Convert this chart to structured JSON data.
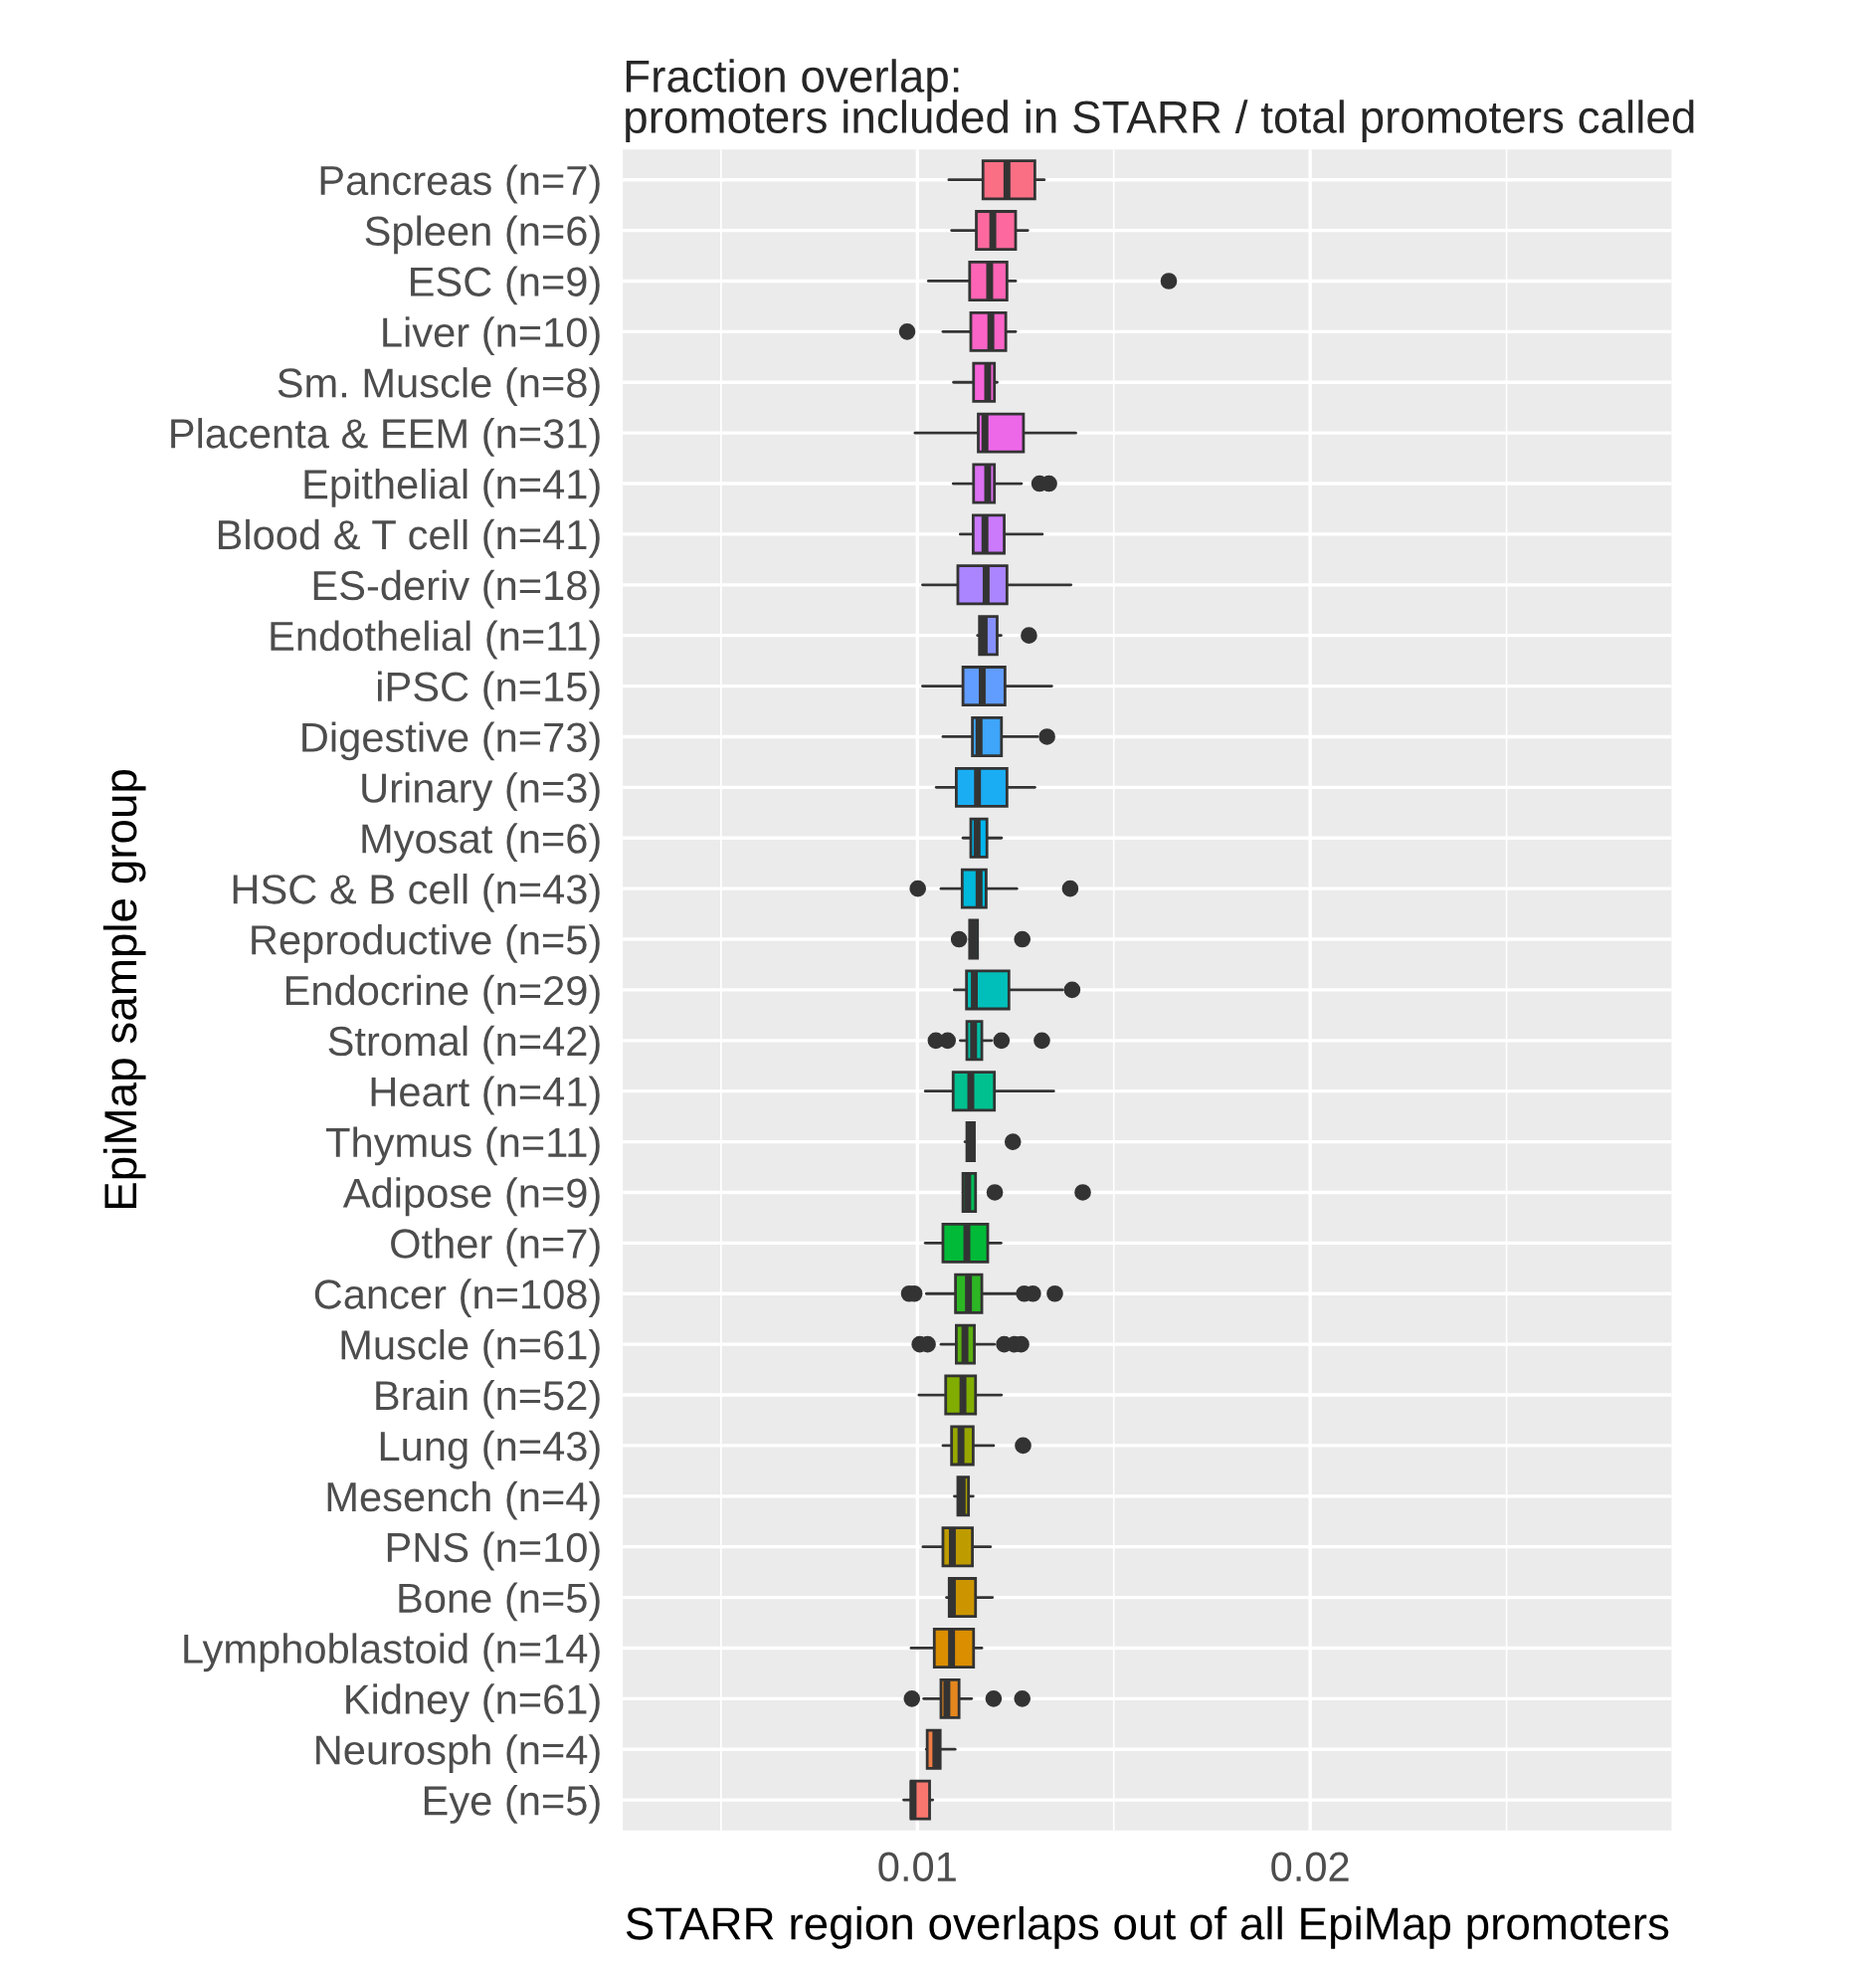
{
  "chart_data": {
    "type": "box",
    "orientation": "horizontal",
    "title": "Fraction overlap:\npromoters included in STARR / total promoters called",
    "xlabel": "STARR region overlaps out of all EpiMap promoters",
    "ylabel": "EpiMap sample group",
    "categories": [
      "Pancreas (n=7)",
      "Spleen (n=6)",
      "ESC (n=9)",
      "Liver (n=10)",
      "Sm. Muscle (n=8)",
      "Placenta & EEM (n=31)",
      "Epithelial (n=41)",
      "Blood & T cell (n=41)",
      "ES-deriv (n=18)",
      "Endothelial (n=11)",
      "iPSC (n=15)",
      "Digestive (n=73)",
      "Urinary (n=3)",
      "Myosat (n=6)",
      "HSC & B cell (n=43)",
      "Reproductive (n=5)",
      "Endocrine (n=29)",
      "Stromal (n=42)",
      "Heart (n=41)",
      "Thymus (n=11)",
      "Adipose (n=9)",
      "Other (n=7)",
      "Cancer (n=108)",
      "Muscle (n=61)",
      "Brain (n=52)",
      "Lung (n=43)",
      "Mesench (n=4)",
      "PNS (n=10)",
      "Bone (n=5)",
      "Lymphoblastoid (n=14)",
      "Kidney (n=61)",
      "Neurosph (n=4)",
      "Eye (n=5)"
    ],
    "colors": [
      "#FB6F85",
      "#FD699E",
      "#FE64B5",
      "#FB64C7",
      "#F764DA",
      "#ED68E8",
      "#DC71F2",
      "#CB7AFC",
      "#AB85FF",
      "#8690FF",
      "#619CFF",
      "#3EA5FA",
      "#1BADF4",
      "#00B5EC",
      "#00B9DC",
      "#00BDCC",
      "#00BFBA",
      "#00C0A5",
      "#00C090",
      "#00BE74",
      "#00BC56",
      "#00BA38",
      "#2DB624",
      "#5AB10F",
      "#81AD00",
      "#97A700",
      "#ACA200",
      "#BE9C00",
      "#CC9500",
      "#DA8E00",
      "#E5861E",
      "#EF7E45",
      "#F8766D"
    ],
    "boxes": [
      {
        "low": 0.0108,
        "q1": 0.01167,
        "median": 0.01228,
        "q3": 0.01299,
        "high": 0.01323
      },
      {
        "low": 0.01087,
        "q1": 0.0115,
        "median": 0.01192,
        "q3": 0.0125,
        "high": 0.01281
      },
      {
        "low": 0.01028,
        "q1": 0.01133,
        "median": 0.01184,
        "q3": 0.01228,
        "high": 0.0125,
        "outliers": [
          0.0164
        ]
      },
      {
        "low": 0.01065,
        "q1": 0.01136,
        "median": 0.01187,
        "q3": 0.01225,
        "high": 0.0125,
        "outliers": [
          0.00974
        ]
      },
      {
        "low": 0.01092,
        "q1": 0.01143,
        "median": 0.01179,
        "q3": 0.01196,
        "high": 0.01203
      },
      {
        "low": 0.00994,
        "q1": 0.01155,
        "median": 0.01172,
        "q3": 0.0127,
        "high": 0.01403
      },
      {
        "low": 0.01091,
        "q1": 0.01143,
        "median": 0.01179,
        "q3": 0.01196,
        "high": 0.01265,
        "outliers": [
          0.01311,
          0.01335
        ]
      },
      {
        "low": 0.01109,
        "q1": 0.01142,
        "median": 0.01172,
        "q3": 0.01221,
        "high": 0.01318
      },
      {
        "low": 0.01013,
        "q1": 0.01103,
        "median": 0.01175,
        "q3": 0.01228,
        "high": 0.01391
      },
      {
        "low": 0.01153,
        "q1": 0.01158,
        "median": 0.0117,
        "q3": 0.01203,
        "high": 0.01213,
        "outliers": [
          0.01284
        ]
      },
      {
        "low": 0.01013,
        "q1": 0.01116,
        "median": 0.01165,
        "q3": 0.01223,
        "high": 0.01342
      },
      {
        "low": 0.01065,
        "q1": 0.0114,
        "median": 0.01157,
        "q3": 0.01214,
        "high": 0.01306,
        "outliers": [
          0.0133
        ]
      },
      {
        "low": 0.01048,
        "q1": 0.01099,
        "median": 0.01153,
        "q3": 0.01228,
        "high": 0.01299
      },
      {
        "low": 0.01116,
        "q1": 0.01136,
        "median": 0.01152,
        "q3": 0.01177,
        "high": 0.01214
      },
      {
        "low": 0.0106,
        "q1": 0.01114,
        "median": 0.01157,
        "q3": 0.01175,
        "high": 0.01253,
        "outliers": [
          0.01001,
          0.01389
        ]
      },
      {
        "low": 0.01133,
        "q1": 0.01133,
        "median": 0.01142,
        "q3": 0.01153,
        "high": 0.01153,
        "outliers": [
          0.01106,
          0.01267
        ]
      },
      {
        "low": 0.01094,
        "q1": 0.01125,
        "median": 0.01145,
        "q3": 0.01233,
        "high": 0.0137,
        "outliers": [
          0.01394
        ]
      },
      {
        "low": 0.01109,
        "q1": 0.01126,
        "median": 0.01143,
        "q3": 0.01164,
        "high": 0.01189,
        "outliers": [
          0.01047,
          0.01077,
          0.01214,
          0.01317
        ]
      },
      {
        "low": 0.0102,
        "q1": 0.01091,
        "median": 0.01136,
        "q3": 0.01196,
        "high": 0.01347
      },
      {
        "low": 0.01121,
        "q1": 0.01126,
        "median": 0.01135,
        "q3": 0.01145,
        "high": 0.01145,
        "outliers": [
          0.01243
        ]
      },
      {
        "low": 0.01116,
        "q1": 0.01116,
        "median": 0.01128,
        "q3": 0.01148,
        "high": 0.01148,
        "outliers": [
          0.01197,
          0.01421
        ]
      },
      {
        "low": 0.0102,
        "q1": 0.01065,
        "median": 0.01126,
        "q3": 0.01179,
        "high": 0.01213
      },
      {
        "low": 0.01023,
        "q1": 0.01097,
        "median": 0.0113,
        "q3": 0.01164,
        "high": 0.01264,
        "outliers": [
          0.00979,
          0.00992,
          0.01272,
          0.01294,
          0.0135
        ]
      },
      {
        "low": 0.0106,
        "q1": 0.01099,
        "median": 0.01121,
        "q3": 0.01145,
        "high": 0.01196,
        "outliers": [
          0.01006,
          0.01026,
          0.01221,
          0.01247,
          0.01264
        ]
      },
      {
        "low": 0.01004,
        "q1": 0.01072,
        "median": 0.01116,
        "q3": 0.01148,
        "high": 0.01214
      },
      {
        "low": 0.01065,
        "q1": 0.01087,
        "median": 0.01111,
        "q3": 0.01142,
        "high": 0.01194,
        "outliers": [
          0.01269
        ]
      },
      {
        "low": 0.01094,
        "q1": 0.01103,
        "median": 0.01114,
        "q3": 0.0113,
        "high": 0.01142
      },
      {
        "low": 0.01014,
        "q1": 0.01065,
        "median": 0.01089,
        "q3": 0.0114,
        "high": 0.01186
      },
      {
        "low": 0.01074,
        "q1": 0.01081,
        "median": 0.01089,
        "q3": 0.01148,
        "high": 0.01191
      },
      {
        "low": 0.00984,
        "q1": 0.01043,
        "median": 0.01087,
        "q3": 0.01143,
        "high": 0.01164
      },
      {
        "low": 0.01016,
        "q1": 0.0106,
        "median": 0.01075,
        "q3": 0.01106,
        "high": 0.01138,
        "outliers": [
          0.00986,
          0.01194,
          0.01267
        ]
      },
      {
        "low": 0.01023,
        "q1": 0.01025,
        "median": 0.01047,
        "q3": 0.01058,
        "high": 0.01096
      },
      {
        "low": 0.00965,
        "q1": 0.00984,
        "median": 0.00989,
        "q3": 0.01031,
        "high": 0.01039
      }
    ],
    "xlim": [
      0.0025,
      0.0292
    ],
    "xticks": [
      {
        "value": 0.005,
        "label": null
      },
      {
        "value": 0.01,
        "label": "0.01"
      },
      {
        "value": 0.015,
        "label": null
      },
      {
        "value": 0.02,
        "label": "0.02"
      },
      {
        "value": 0.025,
        "label": null
      }
    ],
    "grid": true
  }
}
